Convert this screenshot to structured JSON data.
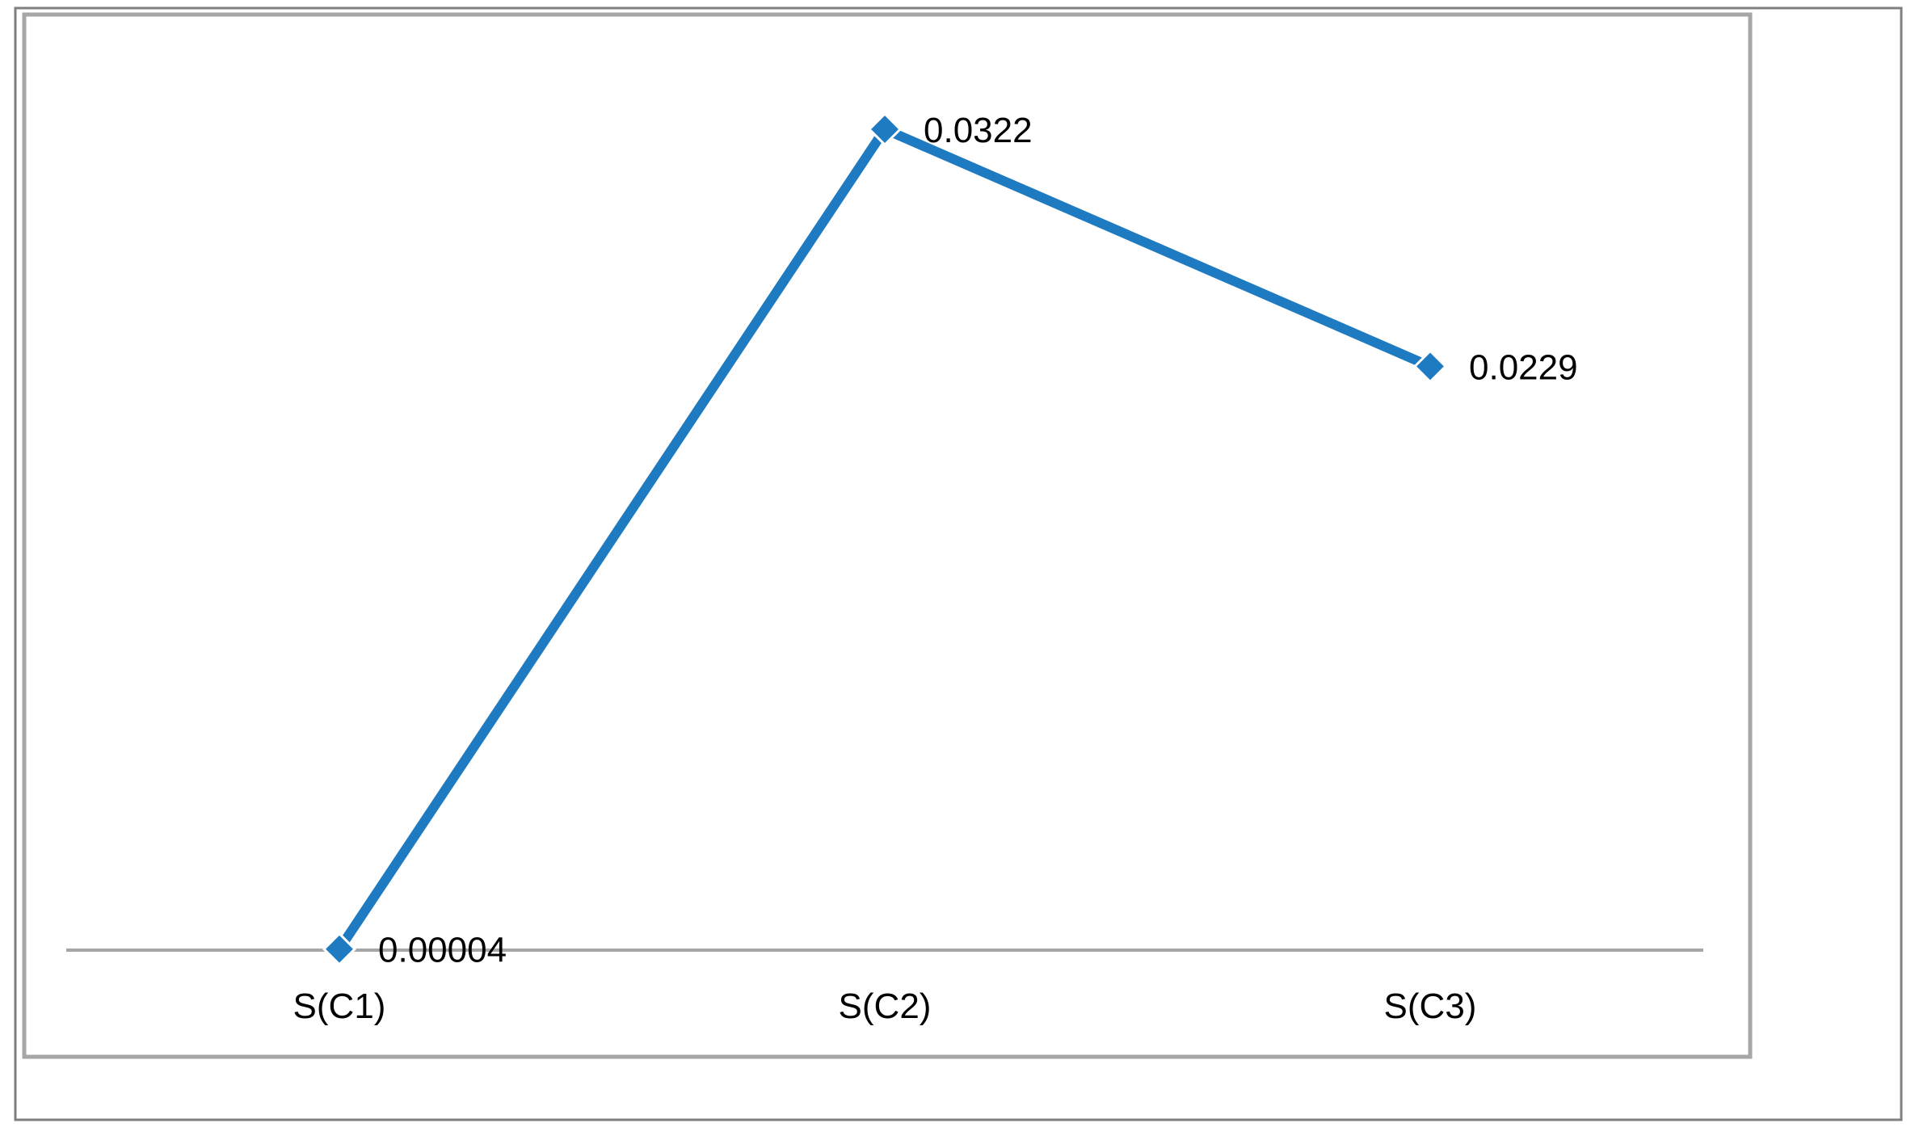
{
  "chart_data": {
    "type": "line",
    "title": "",
    "xlabel": "",
    "ylabel": "",
    "categories": [
      "S(C1)",
      "S(C2)",
      "S(C3)"
    ],
    "series": [
      {
        "values": [
          4e-05,
          0.0322,
          0.0229
        ],
        "data_labels": [
          "0.00004",
          "0.0322",
          "0.0229"
        ],
        "color": "#1f7bc1",
        "marker": "diamond"
      }
    ],
    "ylim": [
      0,
      0.0322
    ],
    "grid": false,
    "legend": "none",
    "colors": {
      "series": "#1f7bc1",
      "axis": "#a6a6a6",
      "plot_border": "#a6a6a6",
      "outer_border": "#7f7f7f",
      "text": "#000000"
    }
  }
}
